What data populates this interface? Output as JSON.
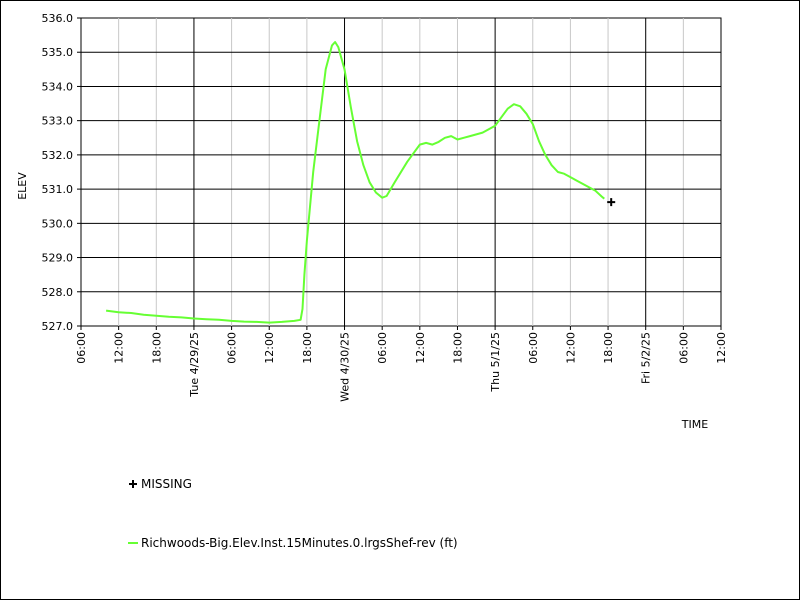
{
  "chart_data": {
    "type": "line",
    "ylabel": "ELEV",
    "xlabel": "TIME",
    "ylim": [
      527.0,
      536.0
    ],
    "yticks": [
      "527.0",
      "528.0",
      "529.0",
      "530.0",
      "531.0",
      "532.0",
      "533.0",
      "534.0",
      "535.0",
      "536.0"
    ],
    "xlim_hours": [
      0,
      102
    ],
    "xtick_labels": [
      "06:00",
      "12:00",
      "18:00",
      "Tue 4/29/25",
      "06:00",
      "12:00",
      "18:00",
      "Wed 4/30/25",
      "06:00",
      "12:00",
      "18:00",
      "Thu 5/1/25",
      "06:00",
      "12:00",
      "18:00",
      "Fri 5/2/25",
      "06:00",
      "12:00"
    ],
    "series": [
      {
        "name": "Richwoods-Big.Elev.Inst.15Minutes.0.lrgsShef-rev (ft)",
        "color": "#66ff33",
        "points": [
          [
            4.0,
            527.45
          ],
          [
            6,
            527.4
          ],
          [
            8,
            527.38
          ],
          [
            10,
            527.33
          ],
          [
            12,
            527.3
          ],
          [
            14,
            527.27
          ],
          [
            16,
            527.25
          ],
          [
            18,
            527.22
          ],
          [
            20,
            527.2
          ],
          [
            22,
            527.18
          ],
          [
            24,
            527.15
          ],
          [
            26,
            527.13
          ],
          [
            28,
            527.12
          ],
          [
            30,
            527.1
          ],
          [
            32,
            527.12
          ],
          [
            34,
            527.15
          ],
          [
            35,
            527.18
          ],
          [
            35.3,
            527.5
          ],
          [
            35.6,
            528.5
          ],
          [
            36,
            529.5
          ],
          [
            37,
            531.5
          ],
          [
            38,
            533.0
          ],
          [
            39,
            534.5
          ],
          [
            40,
            535.2
          ],
          [
            40.5,
            535.3
          ],
          [
            41,
            535.15
          ],
          [
            42,
            534.5
          ],
          [
            43,
            533.4
          ],
          [
            44,
            532.4
          ],
          [
            45,
            531.7
          ],
          [
            46,
            531.2
          ],
          [
            47,
            530.9
          ],
          [
            48,
            530.75
          ],
          [
            48.7,
            530.8
          ],
          [
            50,
            531.2
          ],
          [
            52,
            531.8
          ],
          [
            54,
            532.3
          ],
          [
            55,
            532.35
          ],
          [
            56,
            532.3
          ],
          [
            57,
            532.38
          ],
          [
            58,
            532.5
          ],
          [
            59,
            532.55
          ],
          [
            60,
            532.45
          ],
          [
            61,
            532.5
          ],
          [
            62,
            532.55
          ],
          [
            64,
            532.65
          ],
          [
            66,
            532.85
          ],
          [
            67,
            533.1
          ],
          [
            68,
            533.35
          ],
          [
            69,
            533.48
          ],
          [
            70,
            533.42
          ],
          [
            71,
            533.2
          ],
          [
            72,
            532.9
          ],
          [
            73,
            532.4
          ],
          [
            74,
            532.0
          ],
          [
            75,
            531.7
          ],
          [
            76,
            531.5
          ],
          [
            77,
            531.45
          ],
          [
            78,
            531.35
          ],
          [
            79,
            531.25
          ],
          [
            80,
            531.15
          ],
          [
            81,
            531.05
          ],
          [
            82,
            530.95
          ],
          [
            83,
            530.78
          ],
          [
            83.4,
            530.72
          ]
        ]
      }
    ],
    "missing": {
      "label": "MISSING",
      "points": [
        [
          84.5,
          530.62
        ]
      ]
    }
  }
}
